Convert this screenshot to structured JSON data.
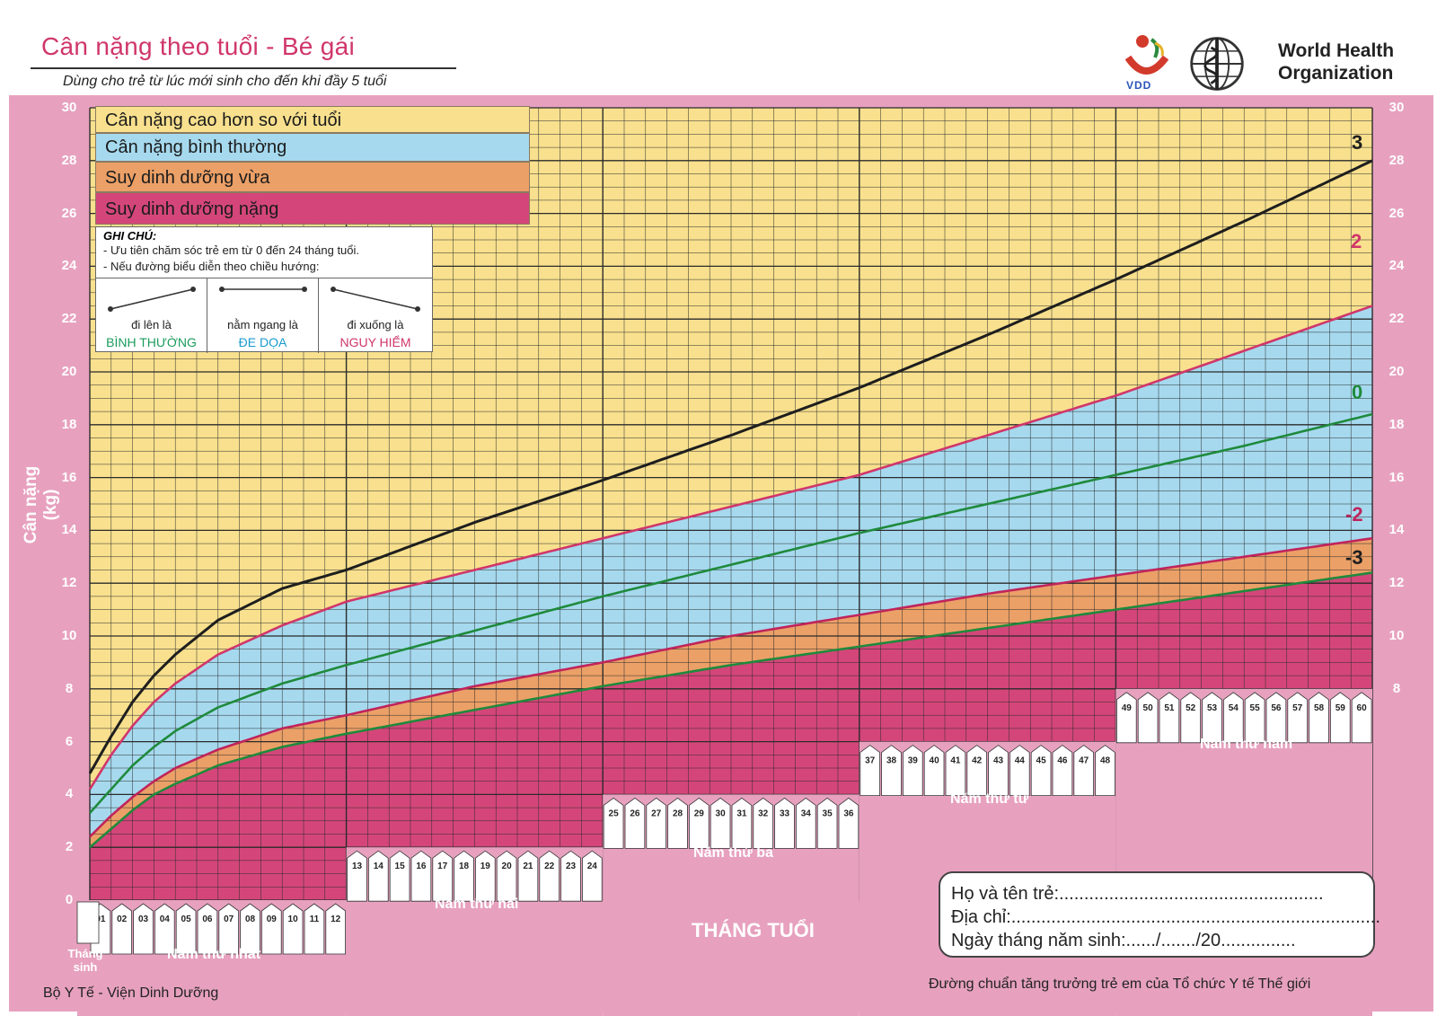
{
  "header": {
    "title": "Cân nặng theo tuổi - Bé gái",
    "subtitle": "Dùng cho trẻ từ lúc mới sinh cho đến khi đầy 5 tuổi",
    "org_name_line1": "World Health",
    "org_name_line2": "Organization",
    "vdd_logo_text": "VDD"
  },
  "legend": [
    {
      "label": "Cân nặng cao hơn so với tuổi",
      "color": "#f8e08e"
    },
    {
      "label": "Cân nặng bình thường",
      "color": "#a6d9ee"
    },
    {
      "label": "Suy dinh dưỡng vừa",
      "color": "#eba067"
    },
    {
      "label": "Suy dinh dưỡng nặng",
      "color": "#d44679"
    }
  ],
  "note": {
    "title": "GHI CHÚ:",
    "line1": "- Ưu tiên chăm sóc trẻ em từ 0 đến 24 tháng tuổi.",
    "line2": "- Nếu đường biểu diễn theo chiều hướng:",
    "trends": [
      {
        "label": "đi lên là",
        "status": "BÌNH THƯỜNG",
        "color": "#1a9c5b"
      },
      {
        "label": "nằm ngang là",
        "status": "ĐE DỌA",
        "color": "#1a9ad0"
      },
      {
        "label": "đi xuống là",
        "status": "NGUY HIỂM",
        "color": "#d0366a"
      }
    ]
  },
  "colors": {
    "background": "#e7a1bf",
    "grid": "#2b2b2b",
    "sd3": "#1e1e1e",
    "sd2": "#d0366a",
    "median": "#1f8a3c",
    "sd_neg2": "#c0245c",
    "sd_neg3": "#1f8a3c"
  },
  "chart_data": {
    "type": "line",
    "title": "Cân nặng theo tuổi - Bé gái",
    "xlabel": "THÁNG TUỔI",
    "ylabel": "Cân nặng (kg)",
    "xlim": [
      0,
      60
    ],
    "ylim": [
      0,
      30
    ],
    "y_ticks": [
      0,
      2,
      4,
      6,
      8,
      10,
      12,
      14,
      16,
      18,
      20,
      22,
      24,
      26,
      28,
      30
    ],
    "x_month_labels": [
      "01",
      "02",
      "03",
      "04",
      "05",
      "06",
      "07",
      "08",
      "09",
      "10",
      "11",
      "12",
      "13",
      "14",
      "15",
      "16",
      "17",
      "18",
      "19",
      "20",
      "21",
      "22",
      "23",
      "24",
      "25",
      "26",
      "27",
      "28",
      "29",
      "30",
      "31",
      "32",
      "33",
      "34",
      "35",
      "36",
      "37",
      "38",
      "39",
      "40",
      "41",
      "42",
      "43",
      "44",
      "45",
      "46",
      "47",
      "48",
      "49",
      "50",
      "51",
      "52",
      "53",
      "54",
      "55",
      "56",
      "57",
      "58",
      "59",
      "60"
    ],
    "birth_label": "Tháng sinh",
    "year_labels": [
      "Năm thứ nhất",
      "Năm thứ hai",
      "Năm thứ ba",
      "Năm thứ tư",
      "Năm thứ năm"
    ],
    "grid": true,
    "x": [
      0,
      1,
      2,
      3,
      4,
      6,
      9,
      12,
      18,
      24,
      30,
      36,
      42,
      48,
      54,
      60
    ],
    "series": [
      {
        "name": "3",
        "values": [
          4.8,
          6.2,
          7.5,
          8.5,
          9.3,
          10.6,
          11.8,
          12.5,
          14.3,
          15.9,
          17.6,
          19.4,
          21.4,
          23.5,
          25.7,
          28.0
        ]
      },
      {
        "name": "2",
        "values": [
          4.2,
          5.5,
          6.6,
          7.5,
          8.2,
          9.3,
          10.4,
          11.3,
          12.5,
          13.7,
          14.9,
          16.1,
          17.6,
          19.1,
          20.8,
          22.5
        ]
      },
      {
        "name": "0",
        "values": [
          3.3,
          4.2,
          5.1,
          5.8,
          6.4,
          7.3,
          8.2,
          8.9,
          10.2,
          11.5,
          12.7,
          13.9,
          15.0,
          16.1,
          17.2,
          18.4
        ]
      },
      {
        "name": "-2",
        "values": [
          2.4,
          3.2,
          3.9,
          4.5,
          5.0,
          5.7,
          6.5,
          7.0,
          8.1,
          9.0,
          10.0,
          10.8,
          11.6,
          12.3,
          13.0,
          13.7
        ]
      },
      {
        "name": "-3",
        "values": [
          2.0,
          2.7,
          3.4,
          4.0,
          4.4,
          5.1,
          5.8,
          6.3,
          7.2,
          8.1,
          8.9,
          9.6,
          10.3,
          11.0,
          11.7,
          12.4
        ]
      }
    ]
  },
  "info": {
    "name_line": "Họ và tên trẻ:.....................................................",
    "address_line": "Địa chỉ:..........................................................................",
    "dob_line": "Ngày tháng năm sinh:....../......./20..............."
  },
  "footer": {
    "left": "Bộ Y Tế - Viện Dinh Dưỡng",
    "right": "Đường chuẩn tăng trưởng trẻ em của Tổ chức Y tế Thế giới"
  }
}
